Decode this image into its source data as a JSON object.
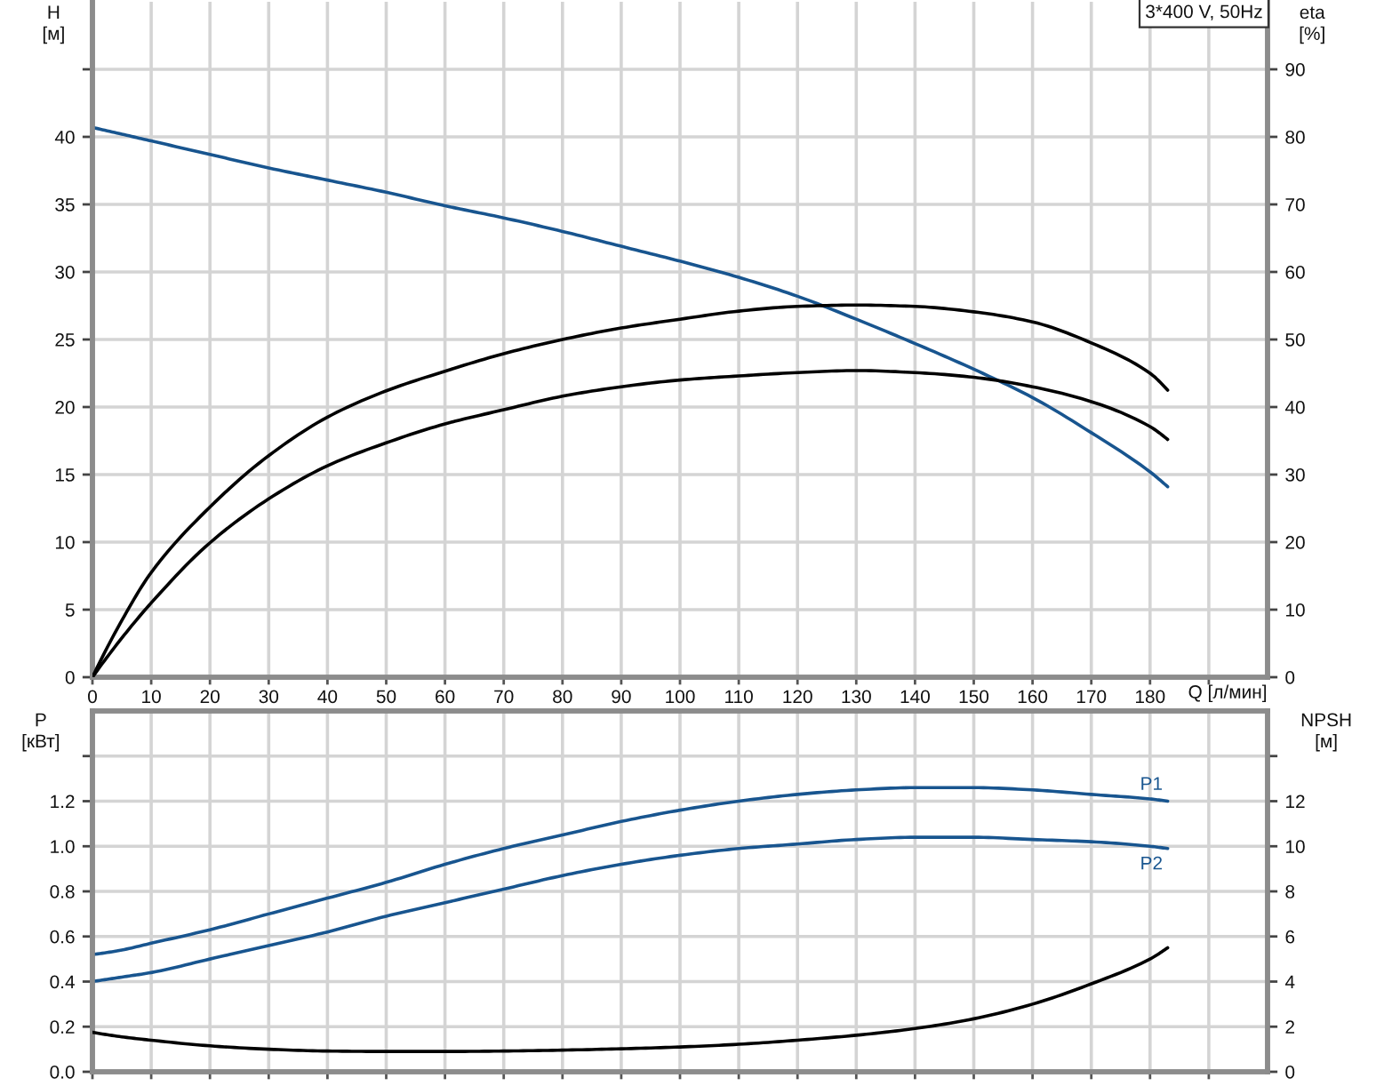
{
  "chart_data": [
    {
      "type": "line",
      "xlabel": "Q [л/мин]",
      "ylabel": "H\n[м]",
      "y2label": "eta\n[%]",
      "annotations": [
        "3*400 V, 50Hz"
      ],
      "x": [
        0,
        5,
        10,
        20,
        30,
        40,
        50,
        60,
        70,
        80,
        90,
        100,
        110,
        120,
        130,
        140,
        150,
        160,
        170,
        180,
        183
      ],
      "series": [
        {
          "color": "#18558f",
          "values": [
            40.7,
            40.2,
            39.7,
            38.7,
            37.7,
            36.8,
            35.9,
            34.9,
            34.0,
            33.0,
            31.9,
            30.8,
            29.6,
            28.2,
            26.5,
            24.7,
            22.8,
            20.7,
            18.1,
            15.2,
            14.1
          ]
        },
        {
          "color": "#000000",
          "axis": "y2",
          "values": [
            0,
            8.4,
            15.5,
            25.2,
            32.8,
            38.5,
            42.4,
            45.3,
            47.9,
            50.0,
            51.7,
            53.0,
            54.2,
            54.9,
            55.1,
            54.9,
            54.1,
            52.6,
            49.5,
            45.0,
            42.5
          ]
        },
        {
          "color": "#000000",
          "axis": "y2",
          "values": [
            0,
            5.8,
            11.0,
            19.9,
            26.4,
            31.3,
            34.7,
            37.5,
            39.6,
            41.6,
            43.0,
            44.0,
            44.6,
            45.1,
            45.4,
            45.1,
            44.4,
            43.0,
            40.8,
            37.1,
            35.2
          ]
        }
      ],
      "xlim": [
        0,
        200
      ],
      "xticks": [
        0,
        10,
        20,
        30,
        40,
        50,
        60,
        70,
        80,
        90,
        100,
        110,
        120,
        130,
        140,
        150,
        160,
        170,
        180,
        {
          "value": 190,
          "label": null
        }
      ],
      "ylim": [
        0,
        50
      ],
      "yticks": [
        0,
        5,
        10,
        15,
        20,
        25,
        30,
        35,
        40,
        {
          "value": 45,
          "label": null
        }
      ],
      "y2lim": [
        0,
        100
      ],
      "y2ticks": [
        0,
        10,
        20,
        30,
        40,
        50,
        60,
        70,
        80,
        90
      ],
      "grid": true
    },
    {
      "type": "line",
      "ylabel": "P\n[кВт]",
      "y2label": "NPSH\n[м]",
      "tick_labels": "y",
      "x": [
        0,
        5,
        10,
        20,
        30,
        40,
        50,
        60,
        70,
        80,
        90,
        100,
        110,
        120,
        130,
        140,
        150,
        160,
        170,
        180,
        183
      ],
      "series": [
        {
          "name": "P1",
          "color": "#18558f",
          "values": [
            0.52,
            0.54,
            0.57,
            0.63,
            0.7,
            0.77,
            0.84,
            0.92,
            0.99,
            1.05,
            1.11,
            1.16,
            1.2,
            1.23,
            1.25,
            1.26,
            1.26,
            1.25,
            1.23,
            1.21,
            1.2
          ]
        },
        {
          "name": "P2",
          "color": "#18558f",
          "values": [
            0.4,
            0.42,
            0.44,
            0.5,
            0.56,
            0.62,
            0.69,
            0.75,
            0.81,
            0.87,
            0.92,
            0.96,
            0.99,
            1.01,
            1.03,
            1.04,
            1.04,
            1.03,
            1.02,
            1.0,
            0.99
          ]
        },
        {
          "color": "#000000",
          "axis": "y2",
          "values": [
            1.75,
            1.55,
            1.4,
            1.15,
            1.0,
            0.92,
            0.9,
            0.9,
            0.92,
            0.96,
            1.02,
            1.1,
            1.22,
            1.4,
            1.62,
            1.92,
            2.35,
            3.0,
            3.9,
            5.0,
            5.5
          ]
        }
      ],
      "xlim": [
        0,
        200
      ],
      "xticks": [
        0,
        10,
        20,
        30,
        40,
        50,
        60,
        70,
        80,
        90,
        100,
        110,
        120,
        130,
        140,
        150,
        160,
        170,
        180,
        {
          "value": 190,
          "label": null
        }
      ],
      "ylim": [
        0,
        1.6
      ],
      "yticks": [
        {
          "value": 0,
          "label": "0.0"
        },
        0.2,
        0.4,
        0.6,
        0.8,
        {
          "value": 1,
          "label": "1.0"
        },
        1.2,
        {
          "value": 1.4,
          "label": null
        }
      ],
      "y2lim": [
        0,
        16
      ],
      "y2ticks": [
        0,
        2,
        4,
        6,
        8,
        10,
        12,
        {
          "value": 14,
          "label": null
        }
      ],
      "grid": true
    }
  ]
}
